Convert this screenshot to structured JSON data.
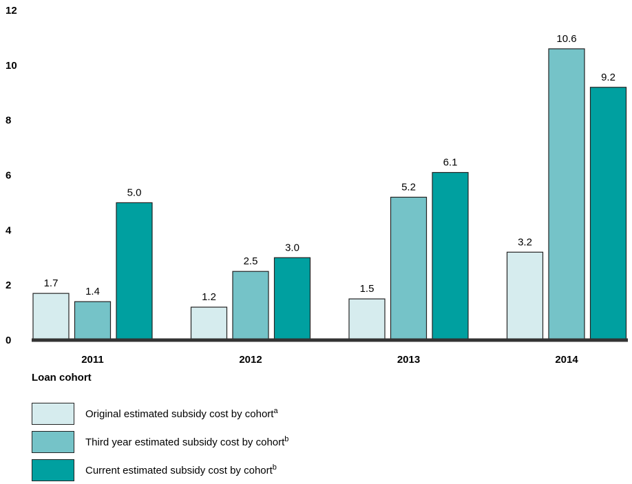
{
  "chart_data": {
    "type": "bar",
    "categories": [
      "2011",
      "2012",
      "2013",
      "2014"
    ],
    "series": [
      {
        "name": "Original estimated subsidy cost by cohort",
        "note": "a",
        "color": "#d6ecee",
        "values": [
          1.7,
          1.2,
          1.5,
          3.2
        ],
        "labels": [
          "1.7",
          "1.2",
          "1.5",
          "3.2"
        ]
      },
      {
        "name": "Third year estimated subsidy cost by cohort",
        "note": "b",
        "color": "#75c3c8",
        "values": [
          1.4,
          2.5,
          5.2,
          10.6
        ],
        "labels": [
          "1.4",
          "2.5",
          "5.2",
          "10.6"
        ]
      },
      {
        "name": "Current estimated subsidy cost by cohort",
        "note": "b",
        "color": "#00a0a0",
        "values": [
          5.0,
          3.0,
          6.1,
          9.2
        ],
        "labels": [
          "5.0",
          "3.0",
          "6.1",
          "9.2"
        ]
      }
    ],
    "yticks": [
      "0",
      "2",
      "4",
      "6",
      "8",
      "10",
      "12"
    ],
    "ylim": [
      0,
      12
    ],
    "xlabel": "Loan cohort",
    "ylabel": "",
    "title": "",
    "grid": false,
    "legend_position": "bottom-left"
  }
}
